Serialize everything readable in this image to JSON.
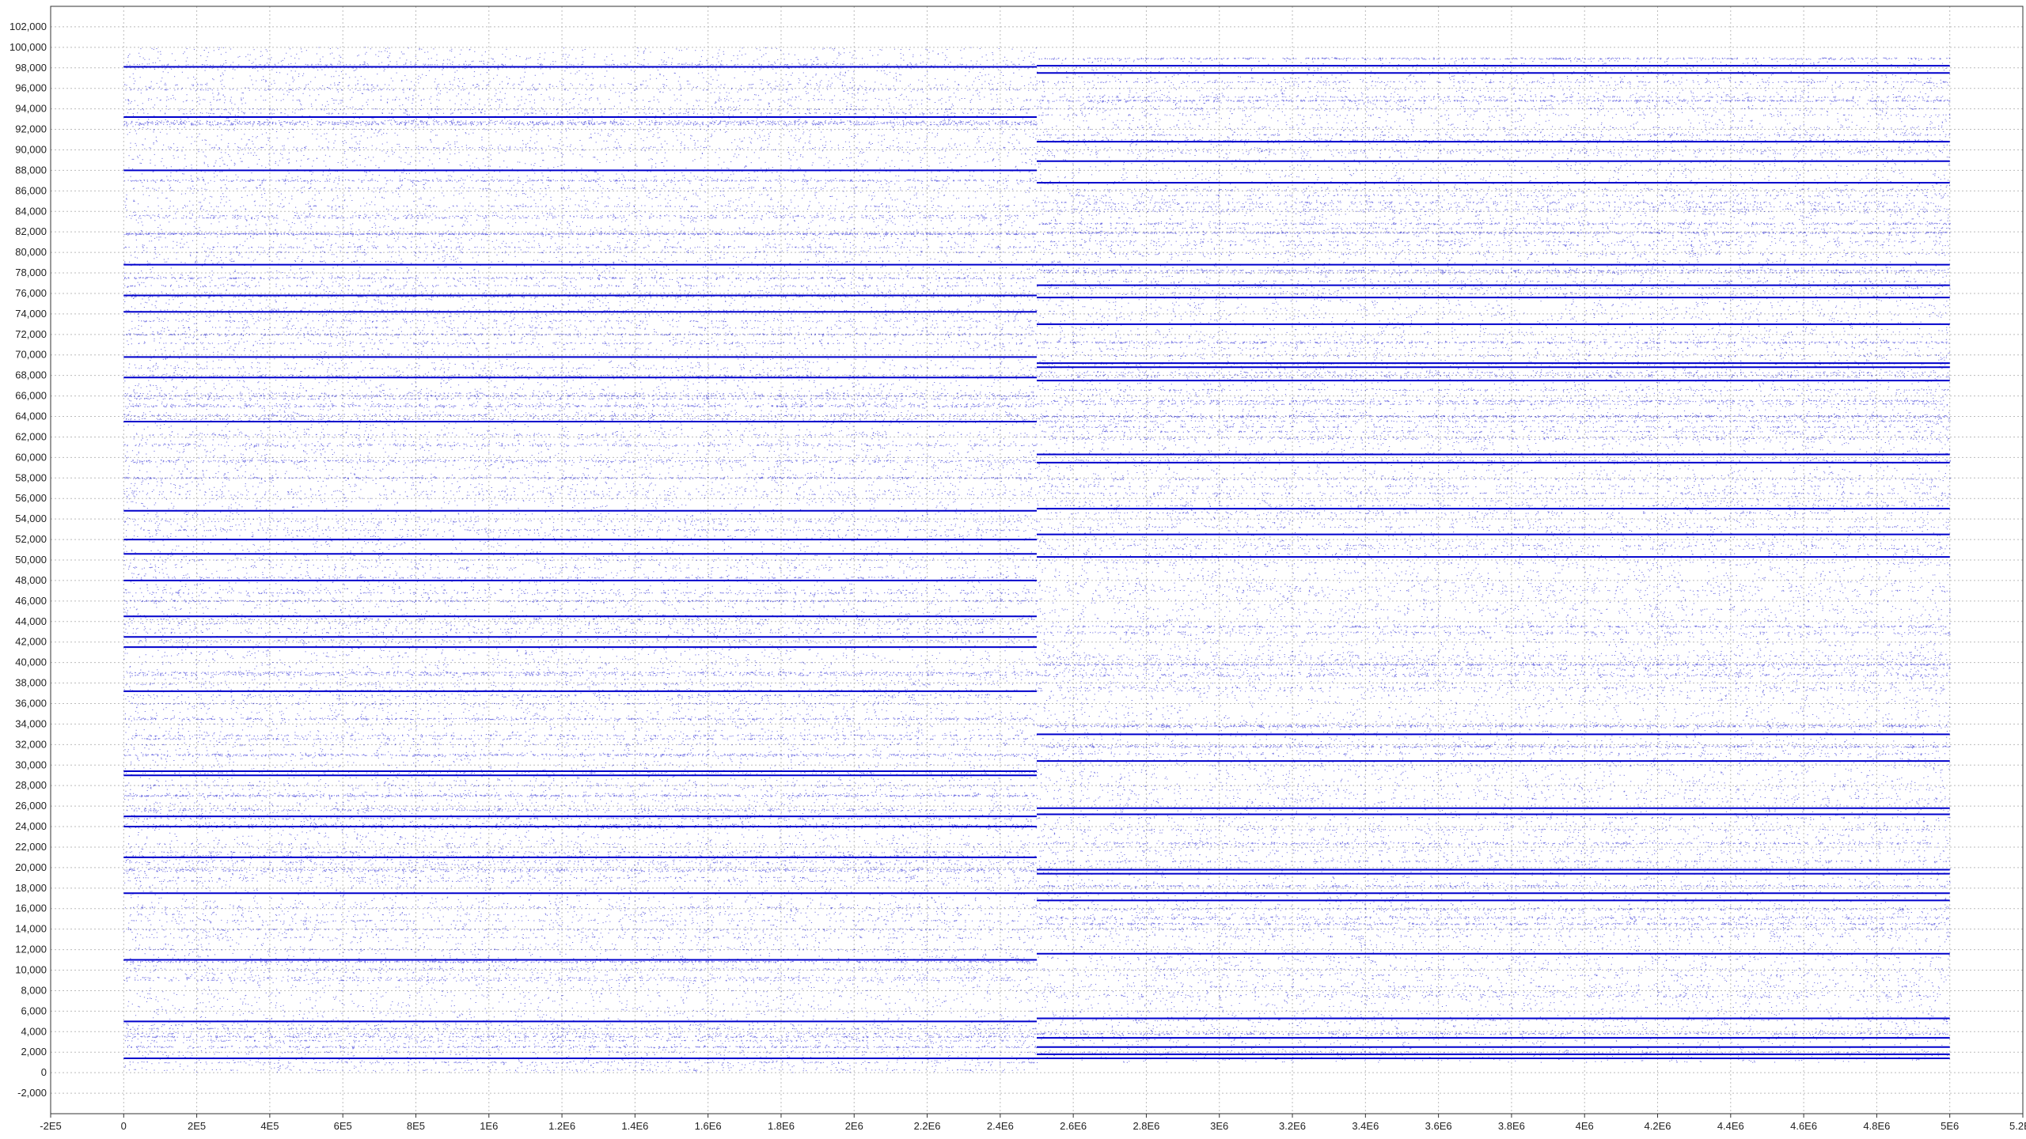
{
  "chart_data": {
    "type": "scatter",
    "title": "",
    "xlabel": "",
    "ylabel": "",
    "grid": true,
    "xlim": [
      -200000,
      5200000
    ],
    "ylim": [
      -4000,
      104000
    ],
    "x_ticks": [
      -200000,
      0,
      200000,
      400000,
      600000,
      800000,
      1000000,
      1200000,
      1400000,
      1600000,
      1800000,
      2000000,
      2200000,
      2400000,
      2600000,
      2800000,
      3000000,
      3200000,
      3400000,
      3600000,
      3800000,
      4000000,
      4200000,
      4400000,
      4600000,
      4800000,
      5000000,
      5200000
    ],
    "x_tick_labels": [
      "-2E5",
      "0",
      "2E5",
      "4E5",
      "6E5",
      "8E5",
      "1E6",
      "1.2E6",
      "1.4E6",
      "1.6E6",
      "1.8E6",
      "2E6",
      "2.2E6",
      "2.4E6",
      "2.6E6",
      "2.8E6",
      "3E6",
      "3.2E6",
      "3.4E6",
      "3.6E6",
      "3.8E6",
      "4E6",
      "4.2E6",
      "4.4E6",
      "4.6E6",
      "4.8E6",
      "5E6",
      "5.2E6"
    ],
    "y_ticks": [
      -2000,
      0,
      2000,
      4000,
      6000,
      8000,
      10000,
      12000,
      14000,
      16000,
      18000,
      20000,
      22000,
      24000,
      26000,
      28000,
      30000,
      32000,
      34000,
      36000,
      38000,
      40000,
      42000,
      44000,
      46000,
      48000,
      50000,
      52000,
      54000,
      56000,
      58000,
      60000,
      62000,
      64000,
      66000,
      68000,
      70000,
      72000,
      74000,
      76000,
      78000,
      80000,
      82000,
      84000,
      86000,
      88000,
      90000,
      92000,
      94000,
      96000,
      98000,
      100000,
      102000
    ],
    "y_tick_labels": [
      "-2,000",
      "0",
      "2,000",
      "4,000",
      "6,000",
      "8,000",
      "10,000",
      "12,000",
      "14,000",
      "16,000",
      "18,000",
      "20,000",
      "22,000",
      "24,000",
      "26,000",
      "28,000",
      "30,000",
      "32,000",
      "34,000",
      "36,000",
      "38,000",
      "40,000",
      "42,000",
      "44,000",
      "46,000",
      "48,000",
      "50,000",
      "52,000",
      "54,000",
      "56,000",
      "58,000",
      "60,000",
      "62,000",
      "64,000",
      "66,000",
      "68,000",
      "70,000",
      "72,000",
      "74,000",
      "76,000",
      "78,000",
      "80,000",
      "82,000",
      "84,000",
      "86,000",
      "88,000",
      "90,000",
      "92,000",
      "94,000",
      "96,000",
      "98,000",
      "100,000",
      "102,000"
    ],
    "color": "#0000cc",
    "series": [
      {
        "x_range": [
          0,
          2500000
        ],
        "y_range": [
          0,
          100000
        ],
        "dense_rows": [
          1400,
          5000,
          11000,
          17500,
          21000,
          24000,
          25000,
          29000,
          29400,
          37200,
          41500,
          42500,
          44500,
          48000,
          50600,
          52000,
          54800,
          63500,
          67800,
          69800,
          74200,
          75800,
          78800,
          88000,
          93200,
          98100
        ],
        "medium_rows": [
          2500,
          3500,
          10800,
          19800,
          27000,
          31000,
          34500,
          39000,
          46000,
          58000,
          65000,
          66000,
          72000,
          77500,
          81800,
          87000,
          92500
        ]
      },
      {
        "x_range": [
          2500000,
          5000000
        ],
        "y_range": [
          1000,
          99000
        ],
        "dense_rows": [
          1400,
          1800,
          2500,
          3400,
          5300,
          11600,
          16800,
          17500,
          19400,
          19800,
          25200,
          25800,
          30400,
          33000,
          50300,
          52500,
          55000,
          59500,
          60300,
          67500,
          68800,
          69200,
          73000,
          75600,
          76800,
          78800,
          86800,
          88900,
          90800,
          97500,
          98200
        ],
        "medium_rows": [
          3800,
          14500,
          18200,
          31800,
          33800,
          39800,
          43500,
          64000,
          65500,
          71200,
          81900,
          82800,
          94800,
          98900
        ]
      }
    ]
  }
}
